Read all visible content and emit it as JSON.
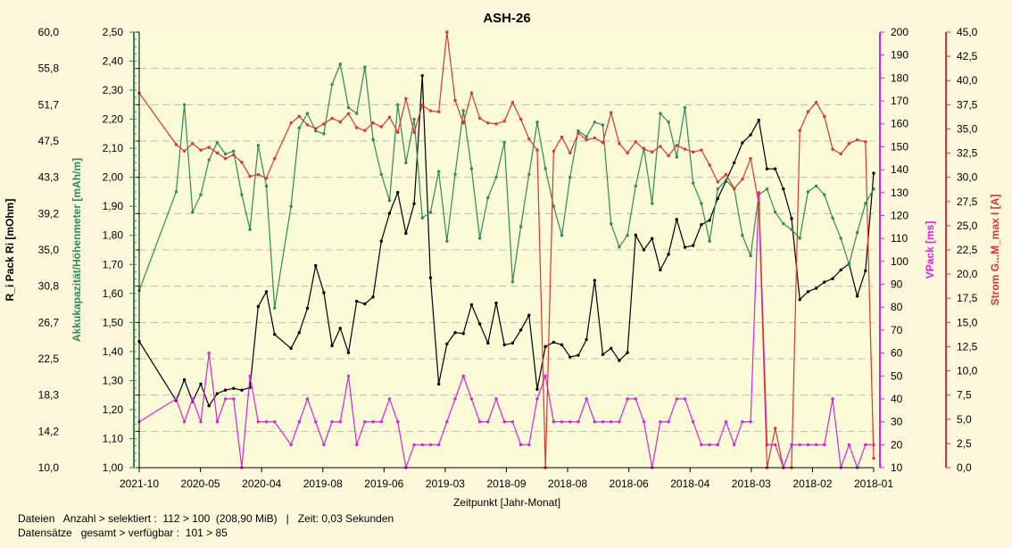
{
  "chart_data": {
    "type": "line",
    "title": "ASH-26",
    "xlabel": "Zeitpunkt [Jahr-Monat]",
    "x_ticks": [
      "2021-10",
      "2020-05",
      "2020-04",
      "2019-08",
      "2019-06",
      "2019-03",
      "2018-09",
      "2018-08",
      "2018-06",
      "2018-04",
      "2018-03",
      "2018-02",
      "2018-01"
    ],
    "grid": true,
    "axes": [
      {
        "id": "ri",
        "label": "R_i Pack   Ri   [mOhm]",
        "color": "#000000",
        "ylim": [
          10.0,
          60.0
        ],
        "ticks": [
          "10,0",
          "14,2",
          "18,3",
          "22,5",
          "26,7",
          "30,8",
          "35,0",
          "39,2",
          "43,3",
          "47,5",
          "51,7",
          "55,8",
          "60,0"
        ]
      },
      {
        "id": "cap",
        "label": "Akkukapazität/Höhenmeter   [mAh/m]",
        "color": "#2e8b57",
        "ylim": [
          1.0,
          2.5
        ],
        "ticks": [
          "1,00",
          "1,10",
          "1,20",
          "1,30",
          "1,40",
          "1,50",
          "1,60",
          "1,70",
          "1,80",
          "1,90",
          "2,00",
          "2,10",
          "2,20",
          "2,30",
          "2,40",
          "2,50"
        ]
      },
      {
        "id": "vp",
        "label": "VPack   [ms]",
        "color": "#dd22dd",
        "ylim": [
          10,
          200
        ],
        "ticks": [
          "10",
          "20",
          "30",
          "40",
          "50",
          "60",
          "70",
          "80",
          "90",
          "100",
          "110",
          "120",
          "130",
          "140",
          "150",
          "160",
          "170",
          "180",
          "190",
          "200"
        ]
      },
      {
        "id": "str",
        "label": "Strom G...M_max   I   [A]",
        "color": "#dd3333",
        "ylim": [
          0.0,
          46.5
        ],
        "ticks": [
          "0,0",
          "2,5",
          "5,0",
          "7,5",
          "10,0",
          "12,5",
          "15,0",
          "17,5",
          "20,0",
          "22,5",
          "25,0",
          "27,5",
          "30,0",
          "32,5",
          "35,0",
          "37,5",
          "40,0",
          "42,5",
          "45,0"
        ]
      }
    ],
    "series": [
      {
        "axis": "ri",
        "color": "#000000",
        "x": [
          0,
          4.5,
          5.5,
          6.5,
          7.5,
          8.5,
          9.5,
          10.5,
          11.5,
          12.5,
          13.5,
          14.5,
          15.5,
          16.5,
          18.5,
          19.5,
          20.5,
          21.5,
          22.5,
          23.5,
          24.5,
          25.5,
          26.5,
          27.5,
          28.5,
          29.5,
          30.5,
          31.5,
          32.5,
          33.5,
          34.5,
          35.5,
          36.5,
          37.5,
          38.5,
          39.5,
          40.5,
          41.5,
          42.5,
          43.5,
          44.5,
          45.5,
          46.5,
          47.5,
          48.5,
          49.5,
          50.5,
          51.5,
          52.5,
          53.5,
          54.5,
          55.5,
          56.5,
          57.5,
          58.5,
          59.5,
          60.5,
          61.5,
          62.5,
          63.5,
          64.5,
          65.5,
          66.5,
          67.5,
          68.5,
          69.5,
          70.5,
          71.5,
          72.5,
          73.5,
          74.5,
          75.5,
          76.5,
          77.5,
          78.5,
          79.5,
          80.5,
          81.5,
          82.5,
          83.5,
          84.5,
          85.5,
          86.5,
          87.5,
          88.5,
          89.5
        ],
        "y": [
          24.5,
          17.7,
          20.1,
          17.6,
          19.6,
          17.1,
          18.5,
          18.9,
          19.1,
          18.9,
          19.2,
          28.5,
          30.2,
          25.3,
          23.7,
          25.5,
          28.3,
          33.2,
          30.1,
          24.0,
          26.0,
          23.2,
          29.1,
          28.8,
          29.6,
          36.0,
          39.2,
          41.6,
          36.9,
          40.3,
          55.0,
          31.8,
          19.6,
          24.2,
          25.5,
          25.4,
          28.7,
          26.5,
          24.3,
          28.9,
          24.1,
          24.3,
          25.8,
          27.5,
          19.0,
          23.9,
          24.4,
          24.1,
          22.7,
          22.9,
          24.7,
          31.5,
          23.0,
          23.7,
          22.3,
          23.2,
          36.7,
          35.0,
          36.3,
          32.7,
          34.5,
          38.5,
          35.3,
          35.5,
          37.9,
          38.4,
          40.9,
          42.9,
          45.0,
          47.3,
          48.2,
          49.9,
          44.3,
          44.3,
          42.0,
          38.6,
          29.3,
          30.2,
          30.6,
          31.3,
          31.7,
          32.7,
          33.4,
          29.7,
          32.6,
          43.8
        ]
      },
      {
        "axis": "cap",
        "color": "#2e8b57",
        "x": [
          0,
          4.5,
          5.5,
          6.5,
          7.5,
          8.5,
          9.5,
          10.5,
          11.5,
          12.5,
          13.5,
          14.5,
          15.5,
          16.5,
          18.5,
          19.5,
          20.5,
          21.5,
          22.5,
          23.5,
          24.5,
          25.5,
          26.5,
          27.5,
          28.5,
          29.5,
          30.5,
          31.5,
          32.5,
          33.5,
          34.5,
          35.5,
          36.5,
          37.5,
          38.5,
          39.5,
          40.5,
          41.5,
          42.5,
          43.5,
          44.5,
          45.5,
          46.5,
          47.5,
          48.5,
          49.5,
          50.5,
          51.5,
          52.5,
          53.5,
          54.5,
          55.5,
          56.5,
          57.5,
          58.5,
          59.5,
          60.5,
          61.5,
          62.5,
          63.5,
          64.5,
          65.5,
          66.5,
          67.5,
          68.5,
          69.5,
          70.5,
          71.5,
          72.5,
          73.5,
          74.5,
          75.5,
          76.5,
          77.5,
          78.5,
          79.5,
          80.5,
          81.5,
          82.5,
          83.5,
          84.5,
          85.5,
          86.5,
          87.5,
          88.5,
          89.5
        ],
        "y": [
          1.61,
          1.95,
          2.25,
          1.88,
          1.94,
          2.06,
          2.12,
          2.08,
          2.09,
          1.94,
          1.82,
          2.11,
          1.97,
          1.55,
          1.9,
          2.17,
          2.22,
          2.16,
          2.15,
          2.32,
          2.39,
          2.24,
          2.22,
          2.38,
          2.13,
          2.01,
          1.92,
          2.25,
          2.05,
          2.2,
          1.86,
          1.88,
          2.02,
          1.78,
          2.01,
          2.23,
          2.03,
          1.79,
          1.93,
          2.0,
          2.12,
          1.64,
          1.83,
          2.01,
          2.19,
          2.03,
          1.9,
          1.8,
          2.0,
          2.16,
          2.14,
          2.19,
          2.18,
          1.84,
          1.76,
          1.8,
          1.97,
          2.1,
          1.91,
          2.22,
          2.19,
          2.07,
          2.24,
          1.98,
          1.91,
          1.78,
          1.96,
          1.99,
          1.96,
          1.8,
          1.73,
          1.94,
          1.96,
          1.88,
          1.84,
          1.82,
          1.79,
          1.95,
          1.97,
          1.94,
          1.86,
          1.79,
          1.7,
          1.81,
          1.91,
          1.96
        ]
      },
      {
        "axis": "vp",
        "color": "#dd22dd",
        "x": [
          0,
          4.5,
          5.5,
          6.5,
          7.5,
          8.5,
          9.5,
          10.5,
          11.5,
          12.5,
          13.5,
          14.5,
          15.5,
          16.5,
          18.5,
          19.5,
          20.5,
          21.5,
          22.5,
          23.5,
          24.5,
          25.5,
          26.5,
          27.5,
          28.5,
          29.5,
          30.5,
          31.5,
          32.5,
          33.5,
          34.5,
          35.5,
          36.5,
          37.5,
          38.5,
          39.5,
          40.5,
          41.5,
          42.5,
          43.5,
          44.5,
          45.5,
          46.5,
          47.5,
          48.5,
          49.5,
          50.5,
          51.5,
          52.5,
          53.5,
          54.5,
          55.5,
          56.5,
          57.5,
          58.5,
          59.5,
          60.5,
          61.5,
          62.5,
          63.5,
          64.5,
          65.5,
          66.5,
          67.5,
          68.5,
          69.5,
          70.5,
          71.5,
          72.5,
          73.5,
          74.5,
          75.5,
          76.5,
          77.5,
          78.5,
          79.5,
          80.5,
          81.5,
          82.5,
          83.5,
          84.5,
          85.5,
          86.5,
          87.5,
          88.5,
          89.5
        ],
        "y": [
          30,
          40,
          30,
          40,
          30,
          60,
          30,
          40,
          40,
          10,
          50,
          30,
          30,
          30,
          20,
          30,
          40,
          30,
          20,
          30,
          30,
          50,
          20,
          30,
          30,
          30,
          40,
          30,
          10,
          20,
          20,
          20,
          20,
          30,
          40,
          50,
          40,
          30,
          30,
          40,
          30,
          30,
          20,
          20,
          40,
          50,
          30,
          30,
          30,
          30,
          40,
          30,
          30,
          30,
          30,
          40,
          40,
          30,
          10,
          30,
          30,
          40,
          40,
          30,
          20,
          20,
          20,
          30,
          20,
          30,
          30,
          130,
          20,
          20,
          10,
          20,
          20,
          20,
          20,
          20,
          40,
          10,
          20,
          10,
          20,
          20
        ]
      },
      {
        "axis": "str",
        "color": "#dd3333",
        "x": [
          0,
          4.5,
          5.5,
          6.5,
          7.5,
          8.5,
          9.5,
          10.5,
          11.5,
          12.5,
          13.5,
          14.5,
          15.5,
          16.5,
          18.5,
          19.5,
          20.5,
          21.5,
          22.5,
          23.5,
          24.5,
          25.5,
          26.5,
          27.5,
          28.5,
          29.5,
          30.5,
          31.5,
          32.5,
          33.5,
          34.5,
          35.5,
          36.5,
          37.5,
          38.5,
          39.5,
          40.5,
          41.5,
          42.5,
          43.5,
          44.5,
          45.5,
          46.5,
          47.5,
          48.5,
          49.5,
          50.5,
          51.5,
          52.5,
          53.5,
          54.5,
          55.5,
          56.5,
          57.5,
          58.5,
          59.5,
          60.5,
          61.5,
          62.5,
          63.5,
          64.5,
          65.5,
          66.5,
          67.5,
          68.5,
          69.5,
          70.5,
          71.5,
          72.5,
          73.5,
          74.5,
          75.5,
          76.5,
          77.5,
          78.5,
          79.5,
          80.5,
          81.5,
          82.5,
          83.5,
          84.5,
          85.5,
          86.5,
          87.5,
          88.5,
          89.5
        ],
        "y": [
          40.0,
          34.5,
          33.8,
          34.6,
          33.9,
          34.2,
          33.6,
          33.0,
          33.4,
          32.6,
          31.1,
          31.3,
          30.9,
          33.0,
          36.8,
          37.5,
          36.6,
          36.2,
          36.7,
          37.3,
          36.9,
          37.8,
          36.3,
          36.0,
          36.8,
          36.4,
          37.4,
          35.8,
          39.4,
          35.8,
          38.7,
          38.1,
          38.0,
          46.5,
          39.2,
          36.8,
          40.0,
          37.3,
          36.8,
          36.7,
          37.0,
          39.0,
          37.2,
          35.1,
          33.9,
          0.0,
          33.8,
          35.3,
          33.6,
          35.7,
          35.0,
          35.2,
          34.7,
          37.9,
          34.6,
          33.6,
          34.8,
          34.0,
          33.7,
          34.3,
          33.3,
          34.4,
          34.0,
          33.7,
          33.9,
          32.3,
          30.5,
          31.3,
          29.8,
          30.8,
          33.0,
          28.2,
          0.0,
          4.2,
          0.0,
          0.0,
          36.0,
          38.0,
          39.0,
          37.5,
          34.0,
          33.5,
          34.6,
          35.0,
          34.8,
          1.0
        ]
      }
    ]
  },
  "footer": {
    "line1": "Dateien   Anzahl > selektiert :  112 > 100  (208,90 MiB)   |   Zeit: 0,03 Sekunden",
    "line2": "Datensätze   gesamt > verfügbar :  101 > 85"
  },
  "colors": {
    "plot_bg": "#fbfbd7",
    "page_bg": "#fdf8dc",
    "grid": "#bbbbbb"
  }
}
